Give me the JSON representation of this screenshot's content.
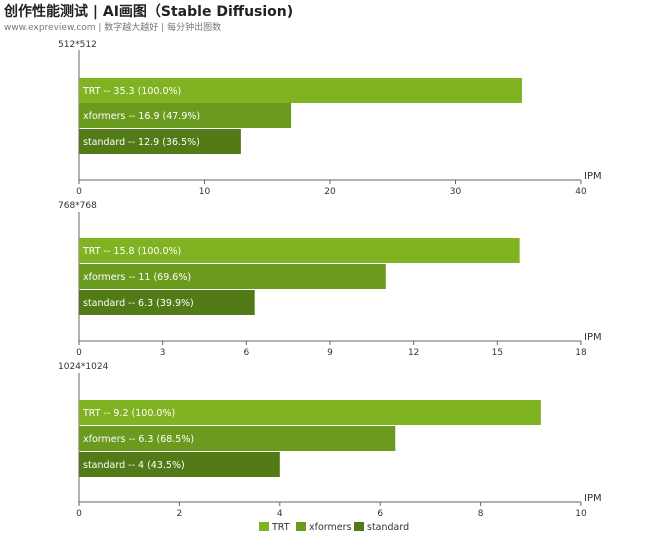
{
  "title": "创作性能测试 | AI画图（Stable Diffusion)",
  "subtitle": "www.expreview.com | 数字越大越好 | 每分钟出图数",
  "colors": {
    "TRT": "#80b321",
    "xformers": "#6a9a1e",
    "standard": "#527a16",
    "axis": "#666666",
    "label_text": "#ffffff"
  },
  "chart_data": [
    {
      "type": "bar",
      "orientation": "horizontal",
      "title": "512*512",
      "xlabel": "IPM",
      "xlim": [
        0,
        40
      ],
      "xticks": [
        0,
        10,
        20,
        30,
        40
      ],
      "categories": [
        "TRT",
        "xformers",
        "standard"
      ],
      "values": [
        35.3,
        16.9,
        12.9
      ],
      "labels": [
        "TRT  --  35.3 (100.0%)",
        "xformers  --  16.9 (47.9%)",
        "standard  --  12.9 (36.5%)"
      ]
    },
    {
      "type": "bar",
      "orientation": "horizontal",
      "title": "768*768",
      "xlabel": "IPM",
      "xlim": [
        0,
        18
      ],
      "xticks": [
        0,
        3,
        6,
        9,
        12,
        15,
        18
      ],
      "categories": [
        "TRT",
        "xformers",
        "standard"
      ],
      "values": [
        15.8,
        11,
        6.3
      ],
      "labels": [
        "TRT  --  15.8 (100.0%)",
        "xformers  --  11 (69.6%)",
        "standard  --  6.3 (39.9%)"
      ]
    },
    {
      "type": "bar",
      "orientation": "horizontal",
      "title": "1024*1024",
      "xlabel": "IPM",
      "xlim": [
        0,
        10
      ],
      "xticks": [
        0,
        2,
        4,
        6,
        8,
        10
      ],
      "categories": [
        "TRT",
        "xformers",
        "standard"
      ],
      "values": [
        9.2,
        6.3,
        4
      ],
      "labels": [
        "TRT  --  9.2 (100.0%)",
        "xformers  --  6.3 (68.5%)",
        "standard  --  4 (43.5%)"
      ]
    }
  ],
  "legend": {
    "placement": "bottom-center",
    "items": [
      "TRT",
      "xformers",
      "standard"
    ]
  }
}
